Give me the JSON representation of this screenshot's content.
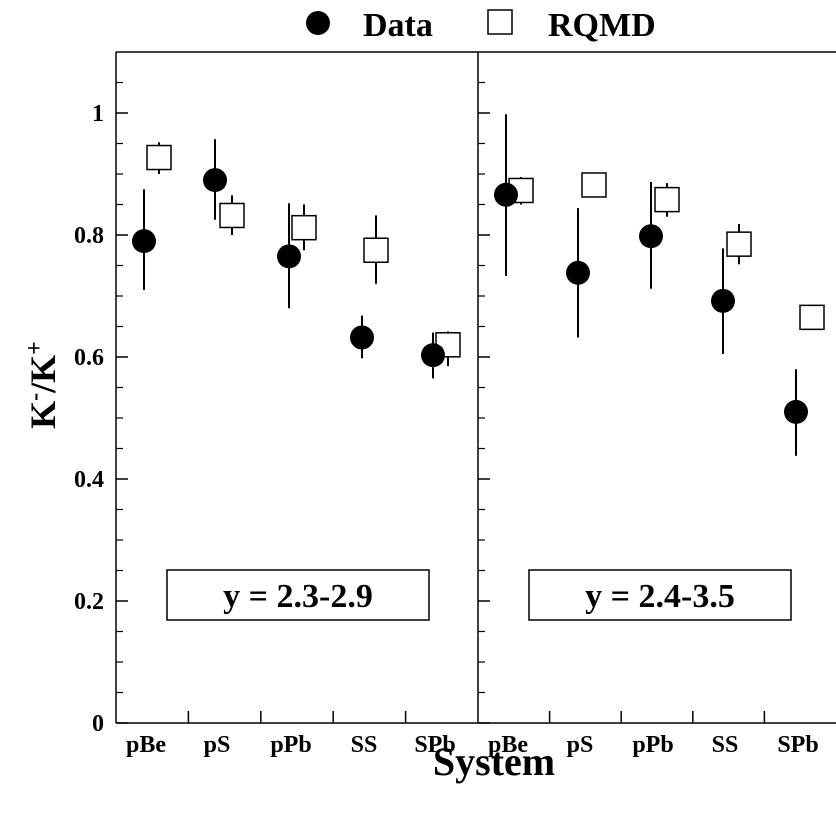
{
  "chart_data": {
    "type": "scatter",
    "ylabel_main": "K",
    "ylabel_sup1": "-",
    "ylabel_mid": "/K",
    "ylabel_sup2": "+",
    "xlabel": "System",
    "ylim": [
      0,
      1.1
    ],
    "yticks": [
      0,
      0.2,
      0.4,
      0.6,
      0.8,
      1
    ],
    "ytick_labels": [
      "0",
      "0.2",
      "0.4",
      "0.6",
      "0.8",
      "1"
    ],
    "legend": [
      {
        "name": "Data",
        "marker": "filled-circle"
      },
      {
        "name": "RQMD",
        "marker": "open-square"
      }
    ],
    "legend_position": "top-center",
    "panels": [
      {
        "label": "y = 2.3-2.9",
        "categories": [
          "pBe",
          "pS",
          "pPb",
          "SS",
          "SPb"
        ],
        "series": [
          {
            "name": "Data",
            "values": [
              0.79,
              0.89,
              0.765,
              0.632,
              0.603
            ],
            "err_low": [
              0.71,
              0.825,
              0.68,
              0.598,
              0.565
            ],
            "err_high": [
              0.875,
              0.957,
              0.852,
              0.668,
              0.64
            ]
          },
          {
            "name": "RQMD",
            "values": [
              0.927,
              0.832,
              0.812,
              0.775,
              0.62
            ],
            "err_low": [
              0.9,
              0.8,
              0.775,
              0.72,
              0.585
            ],
            "err_high": [
              0.952,
              0.865,
              0.85,
              0.832,
              0.642
            ]
          }
        ]
      },
      {
        "label": "y = 2.4-3.5",
        "categories": [
          "pBe",
          "pS",
          "pPb",
          "SS",
          "SPb"
        ],
        "series": [
          {
            "name": "Data",
            "values": [
              0.866,
              0.738,
              0.798,
              0.692,
              0.51
            ],
            "err_low": [
              0.733,
              0.632,
              0.712,
              0.605,
              0.438
            ],
            "err_high": [
              0.998,
              0.844,
              0.887,
              0.778,
              0.58
            ]
          },
          {
            "name": "RQMD",
            "values": [
              0.873,
              0.882,
              0.858,
              0.785,
              0.665
            ],
            "err_low": [
              0.85,
              0.862,
              0.83,
              0.752,
              0.665
            ],
            "err_high": [
              0.895,
              0.9,
              0.885,
              0.818,
              0.665
            ]
          }
        ]
      }
    ]
  }
}
